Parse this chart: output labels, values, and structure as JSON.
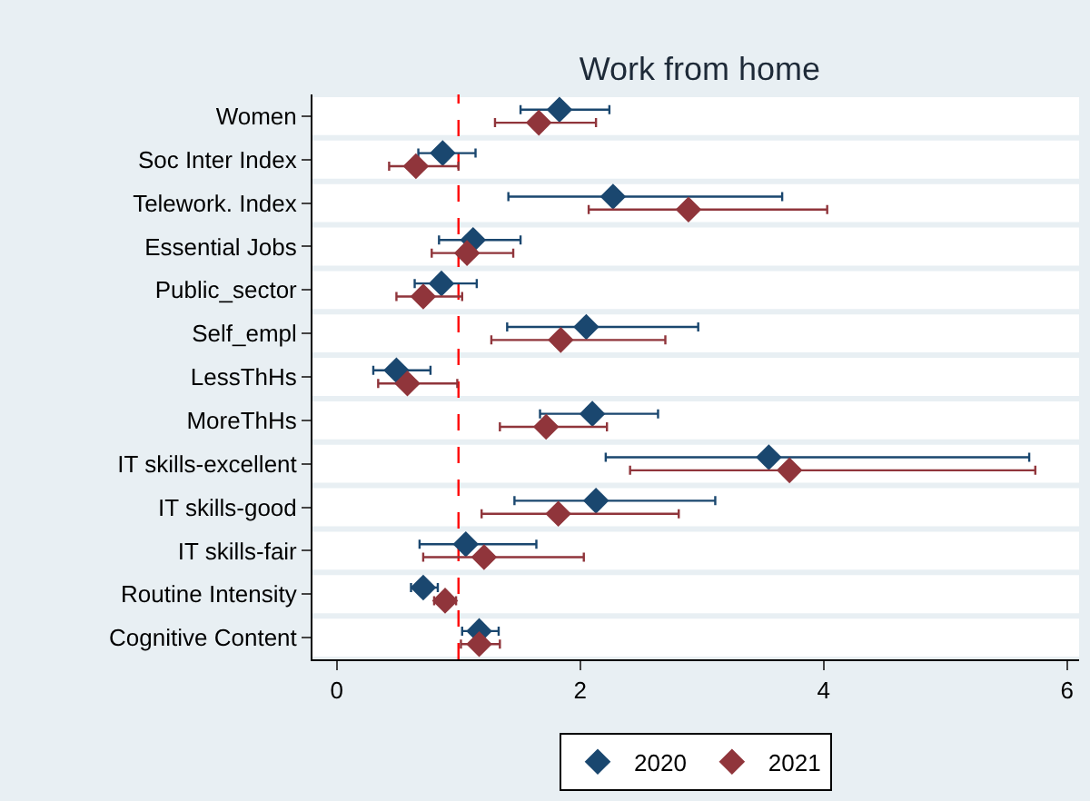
{
  "chart_data": {
    "type": "scatter",
    "orientation": "horizontal",
    "title": "Work from home",
    "categories": [
      "Women",
      "Soc Inter Index",
      "Telework. Index",
      "Essential Jobs",
      "Public_sector",
      "Self_empl",
      "LessThHs",
      "MoreThHs",
      "IT skills-excellent",
      "IT skills-good",
      "IT skills-fair",
      "Routine Intensity",
      "Cognitive Content"
    ],
    "series": [
      {
        "name": "2020",
        "color": "#1a476f",
        "values": [
          1.83,
          0.87,
          2.27,
          1.12,
          0.86,
          2.05,
          0.49,
          2.1,
          3.55,
          2.13,
          1.06,
          0.71,
          1.17
        ],
        "errors": [
          [
            1.51,
            2.24
          ],
          [
            0.67,
            1.14
          ],
          [
            1.41,
            3.66
          ],
          [
            0.84,
            1.51
          ],
          [
            0.64,
            1.15
          ],
          [
            1.4,
            2.97
          ],
          [
            0.3,
            0.77
          ],
          [
            1.67,
            2.64
          ],
          [
            2.21,
            5.69
          ],
          [
            1.46,
            3.11
          ],
          [
            0.68,
            1.64
          ],
          [
            0.61,
            0.83
          ],
          [
            1.03,
            1.33
          ]
        ]
      },
      {
        "name": "2021",
        "color": "#90353b",
        "values": [
          1.66,
          0.65,
          2.89,
          1.07,
          0.71,
          1.84,
          0.58,
          1.72,
          3.72,
          1.82,
          1.21,
          0.89,
          1.17
        ],
        "errors": [
          [
            1.3,
            2.13
          ],
          [
            0.43,
            1.0
          ],
          [
            2.07,
            4.03
          ],
          [
            0.78,
            1.45
          ],
          [
            0.49,
            1.03
          ],
          [
            1.27,
            2.7
          ],
          [
            0.34,
            0.99
          ],
          [
            1.34,
            2.22
          ],
          [
            2.41,
            5.74
          ],
          [
            1.19,
            2.81
          ],
          [
            0.71,
            2.03
          ],
          [
            0.8,
            0.98
          ],
          [
            1.02,
            1.34
          ]
        ]
      }
    ],
    "xlim": [
      -0.2,
      6.1
    ],
    "xticks": [
      0,
      2,
      4,
      6
    ],
    "ref_lines": [
      {
        "axis": "x",
        "value": 1,
        "color": "#ff0000",
        "line_style": "dashed"
      }
    ],
    "grid": "y",
    "legend": "bottom",
    "marker": "diamond"
  }
}
